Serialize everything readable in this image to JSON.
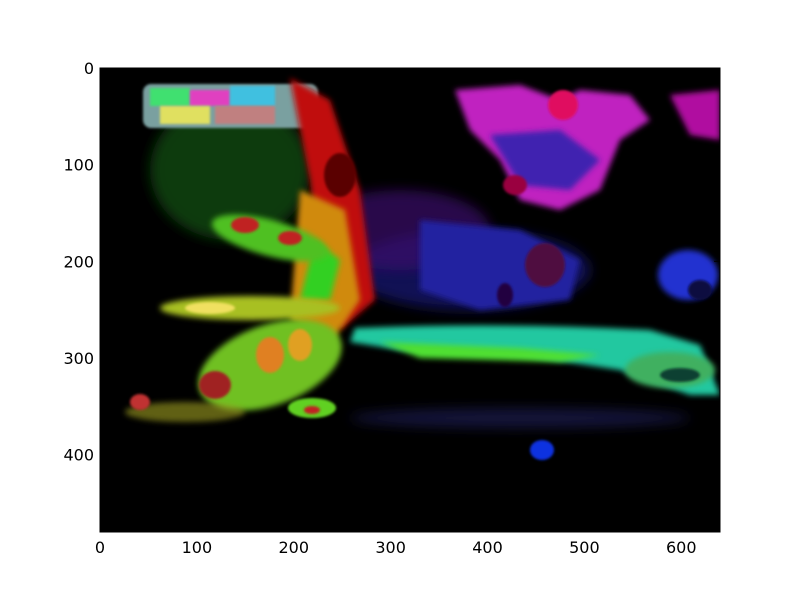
{
  "chart_data": {
    "type": "heatmap",
    "title": "",
    "xlabel": "",
    "ylabel": "",
    "xlim": [
      0,
      640
    ],
    "ylim": [
      480,
      0
    ],
    "y_axis_inverted": true,
    "grid": false,
    "background_color": "#000000",
    "x_ticks": [
      0,
      100,
      200,
      300,
      400,
      500,
      600
    ],
    "y_ticks": [
      0,
      100,
      200,
      300,
      400
    ],
    "x_tick_labels": [
      "0",
      "100",
      "200",
      "300",
      "400",
      "500",
      "600"
    ],
    "y_tick_labels": [
      "0",
      "100",
      "200",
      "300",
      "400"
    ],
    "colormap": "hsv-flow"
  }
}
